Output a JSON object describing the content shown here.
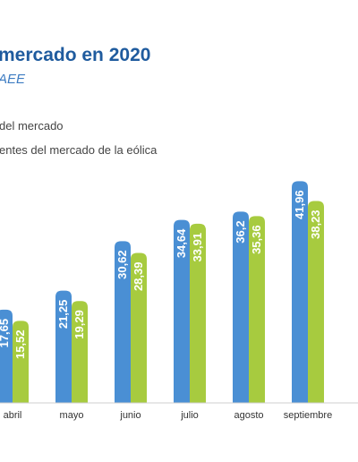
{
  "chart_data": {
    "type": "bar",
    "title": "mercado en 2020",
    "subtitle": "AEE",
    "categories": [
      "abril",
      "mayo",
      "junio",
      "julio",
      "agosto",
      "septiembre"
    ],
    "series": [
      {
        "name": "del mercado",
        "color": "#4a8fd4",
        "values": [
          17.65,
          21.25,
          30.62,
          34.64,
          36.2,
          41.96
        ],
        "labels": [
          "17,65",
          "21,25",
          "30,62",
          "34,64",
          "36,2",
          "41,96"
        ]
      },
      {
        "name": "entes del mercado de la eólica",
        "color": "#a7cb3f",
        "values": [
          15.52,
          19.29,
          28.39,
          33.91,
          35.36,
          38.23
        ],
        "labels": [
          "15,52",
          "19,29",
          "28,39",
          "33,91",
          "35,36",
          "38,23"
        ]
      }
    ],
    "ylim": [
      0,
      50
    ],
    "grid": false,
    "legend": "top-left"
  }
}
